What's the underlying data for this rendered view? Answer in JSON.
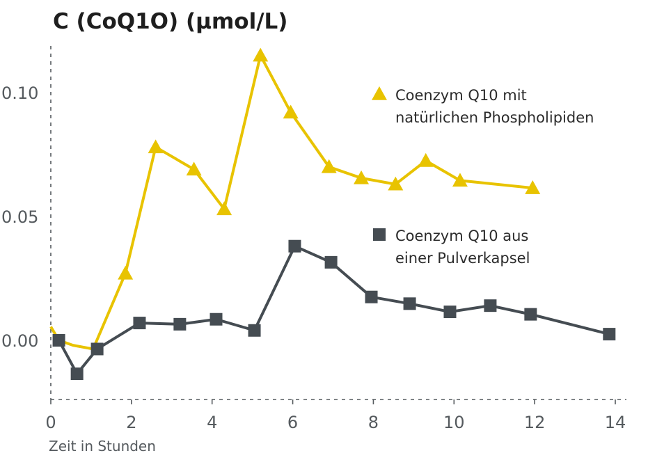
{
  "chart_data": {
    "type": "line",
    "title": "C (CoQ1O) (µmol/L)",
    "xlabel": "Zeit in Stunden",
    "ylabel": "",
    "xlim": [
      0,
      14
    ],
    "ylim": [
      -0.024,
      0.117
    ],
    "x_ticks": [
      0,
      2,
      4,
      6,
      8,
      10,
      12,
      14
    ],
    "x_tick_labels": [
      "0",
      "2",
      "4",
      "6",
      "8",
      "10",
      "12",
      "14"
    ],
    "y_ticks": [
      0.0,
      0.05,
      0.1
    ],
    "y_tick_labels": [
      "0.00",
      "0.05",
      "0.10"
    ],
    "grid": false,
    "legend_position": "right",
    "series": [
      {
        "name_lines": [
          "Coenzym Q10 mit",
          "natürlichen Phospholipiden"
        ],
        "color": "#e8c300",
        "marker": "triangle",
        "start_point": {
          "x": 0.0,
          "y": 0.0055
        },
        "x": [
          0.2,
          0.55,
          1.05,
          1.85,
          2.6,
          3.55,
          4.3,
          5.2,
          5.95,
          6.9,
          7.7,
          8.55,
          9.3,
          10.15,
          11.95
        ],
        "y": [
          0.0,
          -0.002,
          -0.0035,
          0.027,
          0.078,
          0.069,
          0.053,
          0.115,
          0.092,
          0.07,
          0.0655,
          0.063,
          0.0725,
          0.0645,
          0.0615
        ],
        "markers": [
          false,
          false,
          false,
          true,
          true,
          true,
          true,
          true,
          true,
          true,
          true,
          true,
          true,
          true,
          true
        ]
      },
      {
        "name_lines": [
          "Coenzym Q10 aus",
          "einer Pulverkapsel"
        ],
        "color": "#454c52",
        "marker": "square",
        "x": [
          0.2,
          0.65,
          1.15,
          2.2,
          3.2,
          4.1,
          5.05,
          6.05,
          6.95,
          7.95,
          8.9,
          9.9,
          10.9,
          11.9,
          13.85
        ],
        "y": [
          0.0,
          -0.0135,
          -0.0035,
          0.007,
          0.0065,
          0.0085,
          0.004,
          0.038,
          0.0315,
          0.0175,
          0.0148,
          0.0115,
          0.014,
          0.0105,
          0.0025
        ],
        "markers": [
          true,
          true,
          true,
          true,
          true,
          true,
          true,
          true,
          true,
          true,
          true,
          true,
          true,
          true,
          true
        ]
      }
    ]
  }
}
